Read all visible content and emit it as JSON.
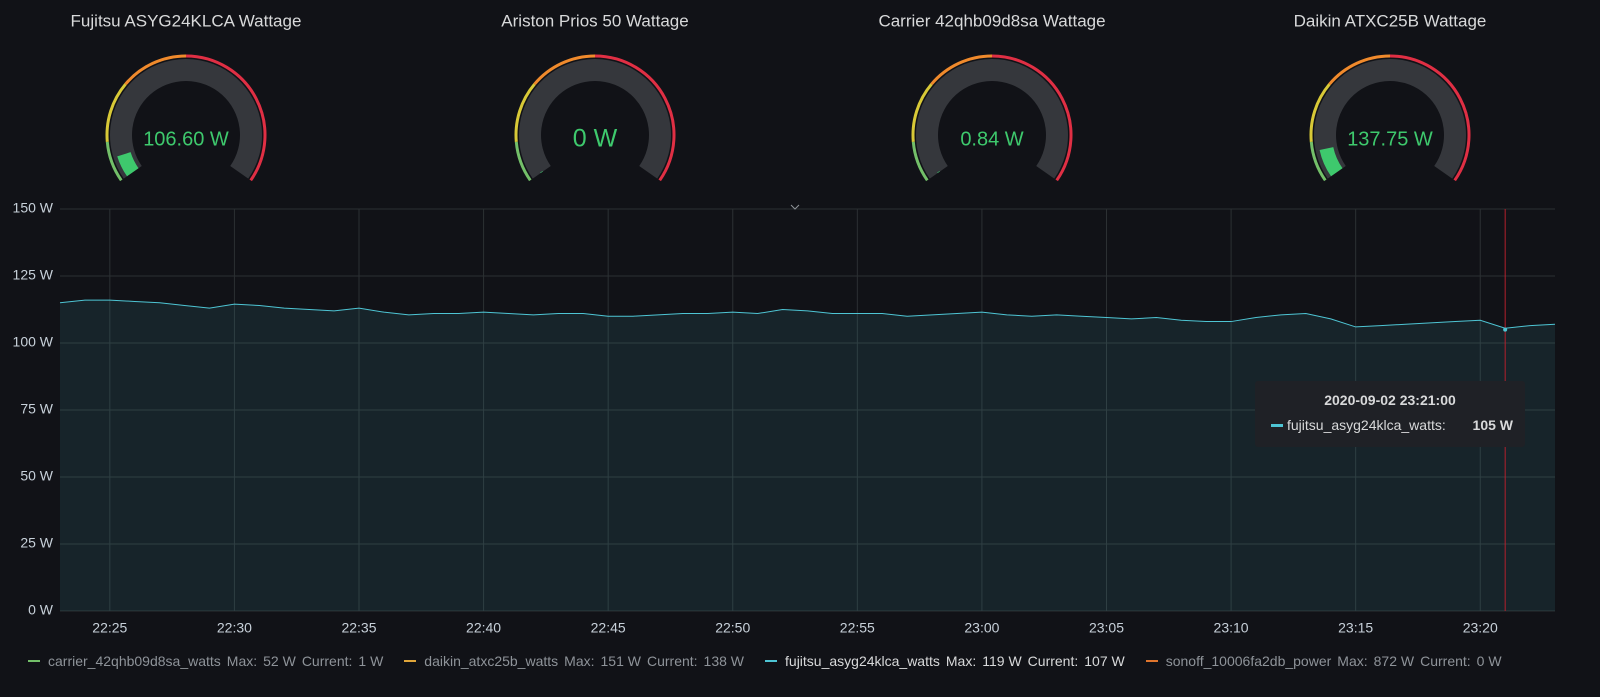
{
  "chart_data": [
    {
      "type": "gauge",
      "title": "Fujitsu ASYG24KLCA Wattage",
      "value": 106.6,
      "value_label": "106.60 W",
      "range": [
        0,
        1500
      ],
      "color": "#3ec96d"
    },
    {
      "type": "gauge",
      "title": "Ariston Prios 50 Wattage",
      "value": 0,
      "value_label": "0 W",
      "range": [
        0,
        1500
      ],
      "color": "#3ec96d"
    },
    {
      "type": "gauge",
      "title": "Carrier 42qhb09d8sa Wattage",
      "value": 0.84,
      "value_label": "0.84 W",
      "range": [
        0,
        1500
      ],
      "color": "#3ec96d"
    },
    {
      "type": "gauge",
      "title": "Daikin ATXC25B Wattage",
      "value": 137.75,
      "value_label": "137.75 W",
      "range": [
        0,
        1500
      ],
      "color": "#3ec96d"
    },
    {
      "type": "line",
      "x": [
        "22:23",
        "22:24",
        "22:25",
        "22:26",
        "22:27",
        "22:28",
        "22:29",
        "22:30",
        "22:31",
        "22:32",
        "22:33",
        "22:34",
        "22:35",
        "22:36",
        "22:37",
        "22:38",
        "22:39",
        "22:40",
        "22:41",
        "22:42",
        "22:43",
        "22:44",
        "22:45",
        "22:46",
        "22:47",
        "22:48",
        "22:49",
        "22:50",
        "22:51",
        "22:52",
        "22:53",
        "22:54",
        "22:55",
        "22:56",
        "22:57",
        "22:58",
        "22:59",
        "23:00",
        "23:01",
        "23:02",
        "23:03",
        "23:04",
        "23:05",
        "23:06",
        "23:07",
        "23:08",
        "23:09",
        "23:10",
        "23:11",
        "23:12",
        "23:13",
        "23:14",
        "23:15",
        "23:16",
        "23:17",
        "23:18",
        "23:19",
        "23:20",
        "23:21",
        "23:22",
        "23:23"
      ],
      "xlim": [
        "22:23",
        "23:23"
      ],
      "xticks": [
        "22:25",
        "22:30",
        "22:35",
        "22:40",
        "22:45",
        "22:50",
        "22:55",
        "23:00",
        "23:05",
        "23:10",
        "23:15",
        "23:20"
      ],
      "ylim": [
        0,
        150
      ],
      "yticks": [
        {
          "value": 0,
          "label": "0 W"
        },
        {
          "value": 25,
          "label": "25 W"
        },
        {
          "value": 50,
          "label": "50 W"
        },
        {
          "value": 75,
          "label": "75 W"
        },
        {
          "value": 100,
          "label": "100 W"
        },
        {
          "value": 125,
          "label": "125 W"
        },
        {
          "value": 150,
          "label": "150 W"
        }
      ],
      "grid": true,
      "stat_labels": [
        "Max:",
        "Current:"
      ],
      "series": [
        {
          "name": "carrier_42qhb09d8sa_watts",
          "color": "#73bf69",
          "max": "52 W",
          "current": "1 W"
        },
        {
          "name": "daikin_atxc25b_watts",
          "color": "#e0a63a",
          "max": "151 W",
          "current": "138 W"
        },
        {
          "name": "fujitsu_asyg24klca_watts",
          "color": "#4ec5d4",
          "max": "119 W",
          "current": "107 W",
          "selected": true,
          "values": [
            115,
            116,
            116,
            115.5,
            115,
            114,
            113,
            114.5,
            114,
            113,
            112.5,
            112,
            113,
            111.5,
            110.5,
            111,
            111,
            111.5,
            111,
            110.5,
            111,
            111,
            110,
            110,
            110.5,
            111,
            111,
            111.5,
            111,
            112.5,
            112,
            111,
            111,
            111,
            110,
            110.5,
            111,
            111.5,
            110.5,
            110,
            110.5,
            110,
            109.5,
            109,
            109.5,
            108.5,
            108,
            108,
            109.5,
            110.5,
            111,
            109,
            106,
            106.5,
            107,
            107.5,
            108,
            108.5,
            105.5,
            106.5,
            107
          ]
        },
        {
          "name": "sonoff_10006fa2db_power",
          "color": "#e0752d",
          "max": "872 W",
          "current": "0 W"
        }
      ],
      "tooltip": {
        "time": "2020-09-02 23:21:00",
        "series": "fujitsu_asyg24klca_watts:",
        "value": 105,
        "value_label": "105 W"
      },
      "crosshair_color": "#b3202c"
    }
  ]
}
